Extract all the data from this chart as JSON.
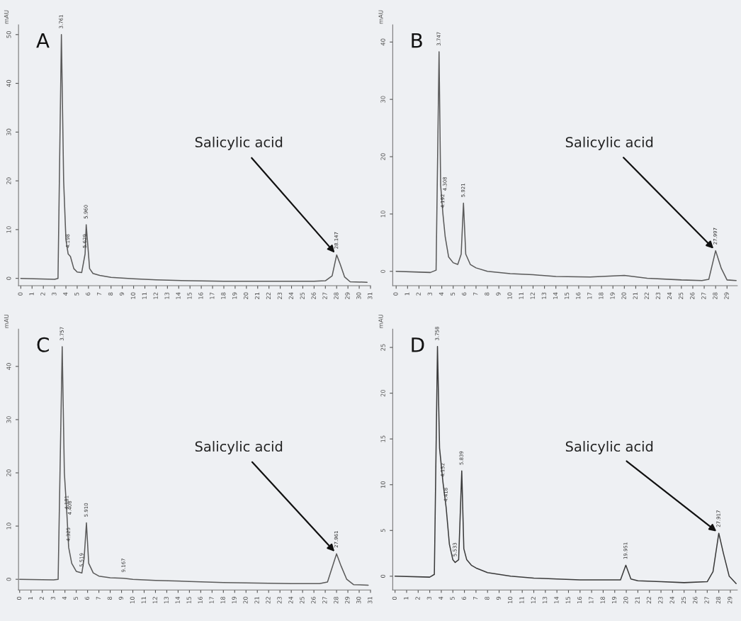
{
  "chart_data": [
    {
      "type": "line",
      "title": "A",
      "ylabel": "mAU",
      "x": [
        0,
        3,
        3.3,
        3.6,
        3.8,
        4.0,
        4.2,
        4.4,
        4.7,
        5.0,
        5.4,
        5.7,
        5.8,
        5.9,
        6.1,
        6.4,
        7,
        8,
        10,
        12,
        15,
        18,
        22,
        26,
        27,
        27.6,
        28.0,
        28.3,
        28.7,
        29.2,
        30.7
      ],
      "series": [
        {
          "color": "#5a5a5a",
          "values": [
            0,
            -0.2,
            0,
            50,
            20,
            8,
            5,
            4.5,
            2,
            1.3,
            1.2,
            5,
            11,
            8,
            2,
            1,
            0.6,
            0.2,
            -0.1,
            -0.3,
            -0.5,
            -0.6,
            -0.6,
            -0.6,
            -0.5,
            0.5,
            4.8,
            3,
            0.3,
            -0.7,
            -0.8
          ]
        }
      ],
      "xlim": [
        -0.2,
        31.0
      ],
      "xticks": [
        0,
        1,
        2,
        3,
        4,
        5,
        6,
        7,
        8,
        9,
        10,
        11,
        12,
        13,
        14,
        15,
        16,
        17,
        18,
        19,
        20,
        21,
        22,
        23,
        24,
        25,
        26,
        27,
        28,
        29,
        30,
        31
      ],
      "ylim": [
        -1.5,
        52
      ],
      "yticks": [
        0,
        10,
        20,
        30,
        40,
        50
      ],
      "annotations": [
        {
          "text": "Salicylic acid",
          "x": 28.0,
          "y": 4.8
        },
        {
          "text": "3.761",
          "x": 3.6,
          "y": 50
        },
        {
          "text": "4.198",
          "x": 4.2,
          "y": 5
        },
        {
          "text": "5.629",
          "x": 5.7,
          "y": 5
        },
        {
          "text": "5.960",
          "x": 5.8,
          "y": 11
        },
        {
          "text": "28.147",
          "x": 28.0,
          "y": 4.8
        }
      ]
    },
    {
      "type": "line",
      "title": "B",
      "ylabel": "mAU",
      "x": [
        0,
        3,
        3.5,
        3.76,
        3.9,
        4.1,
        4.3,
        4.6,
        5,
        5.4,
        5.7,
        5.9,
        6.1,
        6.5,
        7,
        8,
        10,
        12,
        14,
        17,
        20,
        22,
        25,
        26.8,
        27.4,
        28,
        28.5,
        29,
        29.8
      ],
      "series": [
        {
          "color": "#5a5a5a",
          "values": [
            0,
            -0.2,
            0.2,
            38.3,
            15,
            10,
            6,
            2.5,
            1.5,
            1.2,
            3,
            11.9,
            3,
            1.2,
            0.6,
            0,
            -0.4,
            -0.6,
            -0.9,
            -1.0,
            -0.7,
            -1.2,
            -1.5,
            -1.6,
            -1.4,
            3.6,
            0.5,
            -1.5,
            -1.6
          ]
        }
      ],
      "xlim": [
        -0.3,
        29.9
      ],
      "xticks": [
        0,
        1,
        2,
        3,
        4,
        5,
        6,
        7,
        8,
        9,
        10,
        11,
        12,
        13,
        14,
        15,
        16,
        17,
        18,
        19,
        20,
        21,
        22,
        23,
        24,
        25,
        26,
        27,
        28,
        29
      ],
      "ylim": [
        -2.5,
        43
      ],
      "yticks": [
        0,
        10,
        20,
        30,
        40
      ],
      "annotations": [
        {
          "text": "Salicylic acid",
          "x": 28.0,
          "y": 3.6
        },
        {
          "text": "3.747",
          "x": 3.76,
          "y": 38.3
        },
        {
          "text": "4.192",
          "x": 4.1,
          "y": 10
        },
        {
          "text": "4.308",
          "x": 4.3,
          "y": 13
        },
        {
          "text": "5.921",
          "x": 5.9,
          "y": 11.9
        },
        {
          "text": "27.997",
          "x": 28.0,
          "y": 3.6
        }
      ]
    },
    {
      "type": "line",
      "title": "C",
      "ylabel": "mAU",
      "x": [
        0,
        3,
        3.4,
        3.76,
        3.95,
        4.18,
        4.33,
        4.6,
        5.0,
        5.5,
        5.7,
        5.9,
        6.1,
        6.5,
        7,
        8,
        9.2,
        10,
        12,
        15,
        18,
        21,
        24,
        26.5,
        27.2,
        28.0,
        28.4,
        28.9,
        29.5,
        30.8
      ],
      "series": [
        {
          "color": "#5a5a5a",
          "values": [
            0,
            -0.1,
            0,
            43.7,
            20,
            12,
            6,
            3,
            1.5,
            1.2,
            4,
            10.6,
            3,
            1.2,
            0.6,
            0.3,
            0.2,
            0,
            -0.2,
            -0.4,
            -0.6,
            -0.7,
            -0.8,
            -0.8,
            -0.5,
            4.8,
            2.5,
            0,
            -1.0,
            -1.1
          ]
        }
      ],
      "xlim": [
        -0.1,
        31.0
      ],
      "xticks": [
        0,
        1,
        2,
        3,
        4,
        5,
        6,
        7,
        8,
        9,
        10,
        11,
        12,
        13,
        14,
        15,
        16,
        17,
        18,
        19,
        20,
        21,
        22,
        23,
        24,
        25,
        26,
        27,
        28,
        29,
        30,
        31
      ],
      "ylim": [
        -2,
        47
      ],
      "yticks": [
        0,
        10,
        20,
        30,
        40
      ],
      "annotations": [
        {
          "text": "Salicylic acid",
          "x": 28.0,
          "y": 4.8
        },
        {
          "text": "3.757",
          "x": 3.76,
          "y": 43.7
        },
        {
          "text": "4.181",
          "x": 4.18,
          "y": 12
        },
        {
          "text": "4.325",
          "x": 4.33,
          "y": 6
        },
        {
          "text": "4.408",
          "x": 4.45,
          "y": 11
        },
        {
          "text": "5.519",
          "x": 5.5,
          "y": 1.2
        },
        {
          "text": "5.910",
          "x": 5.9,
          "y": 10.6
        },
        {
          "text": "9.167",
          "x": 9.2,
          "y": 0.2
        },
        {
          "text": "27.961",
          "x": 28.0,
          "y": 4.8
        }
      ]
    },
    {
      "type": "line",
      "title": "D",
      "ylabel": "mAU",
      "x": [
        0,
        3,
        3.4,
        3.67,
        3.85,
        4.15,
        4.42,
        4.7,
        5.0,
        5.2,
        5.5,
        5.77,
        5.95,
        6.2,
        6.6,
        7,
        8,
        10,
        12,
        14,
        16,
        18,
        19.5,
        19.96,
        20.4,
        21,
        23,
        25,
        27,
        27.5,
        28.0,
        28.4,
        28.9,
        29.5
      ],
      "series": [
        {
          "color": "#3a3a3a",
          "values": [
            0,
            -0.1,
            0.2,
            25.1,
            14,
            10.2,
            7.5,
            3.5,
            1.8,
            1.5,
            1.8,
            11.5,
            3,
            1.8,
            1.2,
            0.9,
            0.4,
            0,
            -0.2,
            -0.3,
            -0.4,
            -0.4,
            -0.4,
            1.2,
            -0.3,
            -0.5,
            -0.6,
            -0.7,
            -0.6,
            0.5,
            4.7,
            2.5,
            0,
            -0.8
          ]
        }
      ],
      "xlim": [
        -0.2,
        29.6
      ],
      "xticks": [
        0,
        1,
        2,
        3,
        4,
        5,
        6,
        7,
        8,
        9,
        10,
        11,
        12,
        13,
        14,
        15,
        16,
        17,
        18,
        19,
        20,
        21,
        22,
        23,
        24,
        25,
        26,
        27,
        28,
        29
      ],
      "ylim": [
        -1.5,
        27
      ],
      "yticks": [
        0,
        5,
        10,
        15,
        20,
        25
      ],
      "annotations": [
        {
          "text": "Salicylic acid",
          "x": 28.0,
          "y": 4.7
        },
        {
          "text": "3.758",
          "x": 3.67,
          "y": 25.1
        },
        {
          "text": "4.152",
          "x": 4.15,
          "y": 10.2
        },
        {
          "text": "4.418",
          "x": 4.42,
          "y": 7.5
        },
        {
          "text": "5.533",
          "x": 5.2,
          "y": 1.5
        },
        {
          "text": "5.839",
          "x": 5.77,
          "y": 11.5
        },
        {
          "text": "19.951",
          "x": 19.96,
          "y": 1.2
        },
        {
          "text": "27.917",
          "x": 28.0,
          "y": 4.7
        }
      ]
    }
  ]
}
